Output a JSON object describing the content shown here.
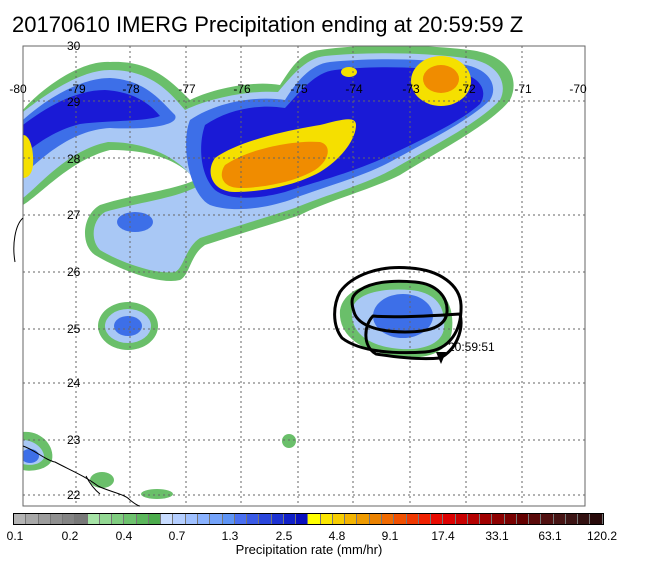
{
  "title": "20170610 IMERG Precipitation ending at 20:59:59 Z",
  "map": {
    "lon_labels": [
      "-80",
      "-79",
      "-78",
      "-77",
      "-76",
      "-75",
      "-74",
      "-73",
      "-72",
      "-71",
      "-70"
    ],
    "lat_labels": [
      "30",
      "29",
      "28",
      "27",
      "26",
      "25",
      "24",
      "23",
      "22"
    ],
    "track_label": "20:59:51",
    "colors": {
      "green_outline": "#6abf6a",
      "light_blue": "#a9c8f5",
      "blue": "#3d6fe8",
      "dark_blue": "#1a1ad6",
      "yellow": "#f5e000",
      "orange": "#f08c00",
      "grid": "#666666"
    }
  },
  "colorbar": {
    "ticks": [
      "0.1",
      "0.2",
      "0.4",
      "0.7",
      "1.3",
      "2.5",
      "4.8",
      "9.1",
      "17.4",
      "33.1",
      "63.1",
      "120.2"
    ],
    "label": "Precipitation rate (mm/hr)",
    "colors": [
      "#b4b4b4",
      "#a8a8a8",
      "#9c9c9c",
      "#909090",
      "#848484",
      "#787878",
      "#a6e3a6",
      "#93d893",
      "#80cd80",
      "#6ec26e",
      "#5cb75c",
      "#4cac4c",
      "#c8dcff",
      "#b4ceff",
      "#9fc0ff",
      "#8ab2ff",
      "#74a3fa",
      "#5e94f5",
      "#4a6ff0",
      "#3a5ae6",
      "#2a46dc",
      "#1c32d2",
      "#1020c8",
      "#0a10be",
      "#ffff00",
      "#fbe600",
      "#f7cd00",
      "#f3b400",
      "#ef9b00",
      "#eb8200",
      "#f06a00",
      "#f05000",
      "#f03800",
      "#f02000",
      "#e80a00",
      "#dc0000",
      "#c80000",
      "#b40000",
      "#a00000",
      "#8c0000",
      "#780000",
      "#640000",
      "#5a0a0a",
      "#501010",
      "#461414",
      "#3c1414",
      "#321010",
      "#280a0a"
    ]
  }
}
